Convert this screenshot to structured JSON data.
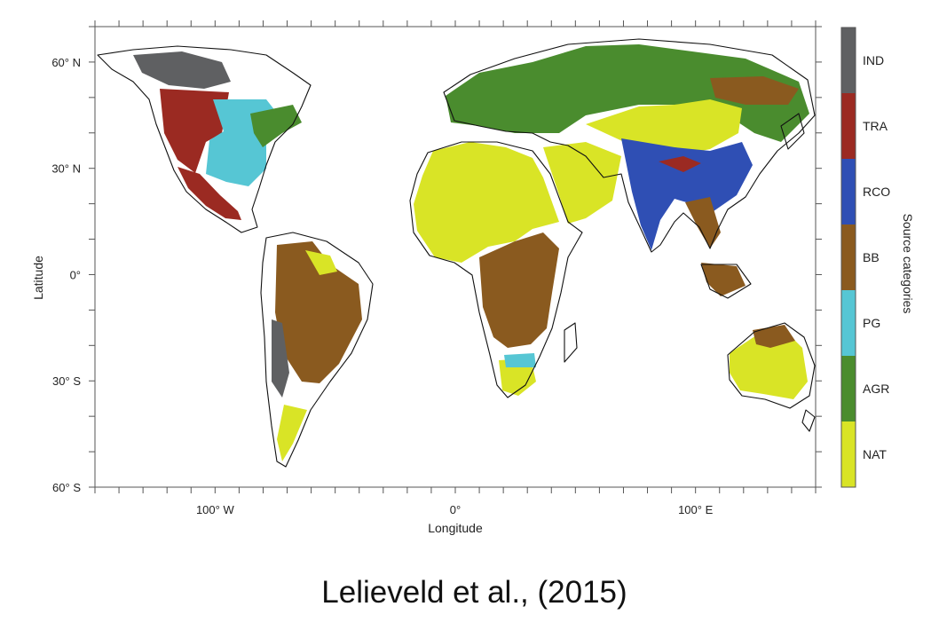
{
  "caption": "Lelieveld et al., (2015)",
  "chart_data": {
    "type": "map",
    "xlabel": "Longitude",
    "ylabel": "Latitude",
    "x_ticks": [
      {
        "lon": -100,
        "label": "100° W"
      },
      {
        "lon": 0,
        "label": "0°"
      },
      {
        "lon": 100,
        "label": "100° E"
      }
    ],
    "y_ticks": [
      {
        "lat": 60,
        "label": "60° N"
      },
      {
        "lat": 30,
        "label": "30° N"
      },
      {
        "lat": 0,
        "label": "0°"
      },
      {
        "lat": -30,
        "label": "30° S"
      },
      {
        "lat": -60,
        "label": "60° S"
      }
    ],
    "lon_range": [
      -150,
      150
    ],
    "lat_range": [
      -60,
      70
    ],
    "legend": {
      "title": "Source categories",
      "categories": [
        {
          "code": "IND",
          "color": "#5f6062"
        },
        {
          "code": "TRA",
          "color": "#9b2a22"
        },
        {
          "code": "RCO",
          "color": "#2f4fb4"
        },
        {
          "code": "BB",
          "color": "#8a5a1f"
        },
        {
          "code": "PG",
          "color": "#56c6d4"
        },
        {
          "code": "AGR",
          "color": "#4a8c2e"
        },
        {
          "code": "NAT",
          "color": "#d9e426"
        }
      ]
    },
    "regions": [
      {
        "area": "North America west/central",
        "category": "TRA"
      },
      {
        "area": "United States central/east",
        "category": "PG"
      },
      {
        "area": "Mexico and Central America",
        "category": "TRA"
      },
      {
        "area": "South America interior",
        "category": "BB"
      },
      {
        "area": "Sahara and Arabia",
        "category": "NAT"
      },
      {
        "area": "Central and southern Africa",
        "category": "BB"
      },
      {
        "area": "Europe and Russia",
        "category": "AGR"
      },
      {
        "area": "Central Asia and Mongolia",
        "category": "NAT"
      },
      {
        "area": "India and China",
        "category": "RCO"
      },
      {
        "area": "Southeast Asia",
        "category": "BB"
      },
      {
        "area": "Australia interior",
        "category": "NAT"
      },
      {
        "area": "Northern high latitudes",
        "category": "IND"
      }
    ]
  }
}
